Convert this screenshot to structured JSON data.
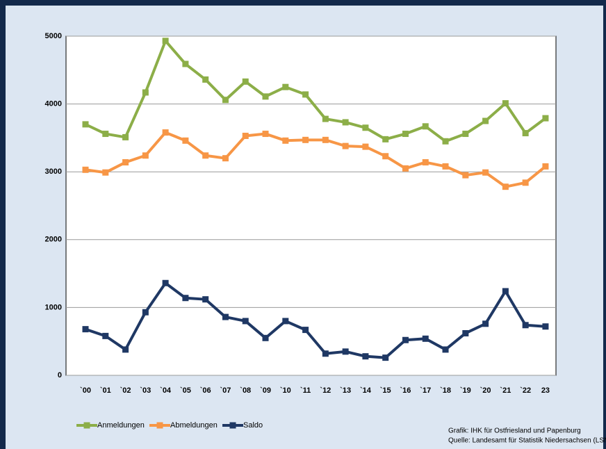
{
  "chart_data": {
    "type": "line",
    "categories": [
      "`00",
      "`01",
      "`02",
      "`03",
      "`04",
      "`05",
      "`06",
      "`07",
      "`08",
      "`09",
      "`10",
      "`11",
      "`12",
      "`13",
      "`14",
      "`15",
      "`16",
      "`17",
      "`18",
      "`19",
      "`20",
      "`21",
      "`22",
      "23"
    ],
    "series": [
      {
        "name": "Anmeldungen",
        "color": "#8cae48",
        "values": [
          3700,
          3560,
          3510,
          4170,
          4930,
          4590,
          4360,
          4060,
          4330,
          4110,
          4250,
          4140,
          3780,
          3730,
          3650,
          3480,
          3560,
          3670,
          3450,
          3560,
          3750,
          4010,
          3570,
          3790
        ]
      },
      {
        "name": "Abmeldungen",
        "color": "#f79646",
        "values": [
          3030,
          2990,
          3140,
          3240,
          3580,
          3460,
          3240,
          3200,
          3530,
          3560,
          3460,
          3470,
          3470,
          3380,
          3370,
          3230,
          3050,
          3140,
          3080,
          2950,
          2990,
          2780,
          2840,
          3080
        ]
      },
      {
        "name": "Saldo",
        "color": "#1f3864",
        "values": [
          680,
          580,
          380,
          930,
          1360,
          1140,
          1120,
          860,
          800,
          550,
          800,
          670,
          320,
          350,
          280,
          260,
          520,
          540,
          380,
          620,
          760,
          1240,
          740,
          720
        ]
      }
    ],
    "ylim": [
      0,
      5000
    ],
    "yticks": [
      0,
      1000,
      2000,
      3000,
      4000,
      5000
    ],
    "grid": true,
    "source": [
      "Grafik: IHK für Ostfriesland und Papenburg",
      "Quelle: Landesamt für Statistik Niedersachsen (LSN)"
    ]
  }
}
